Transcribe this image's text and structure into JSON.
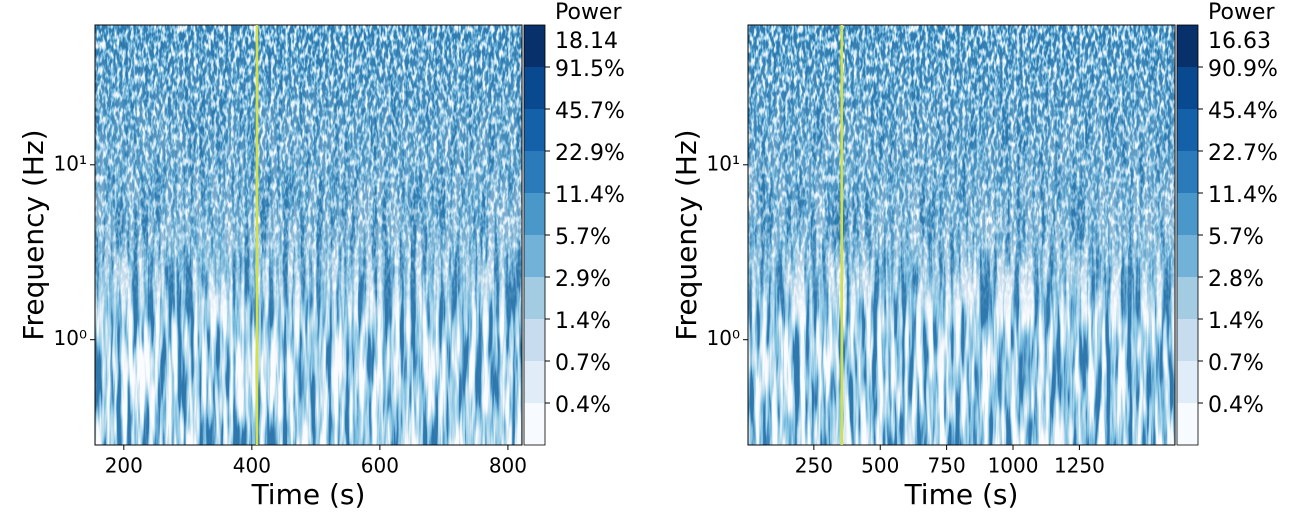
{
  "chart_data": [
    {
      "type": "spectrogram",
      "xlabel": "Time (s)",
      "ylabel": "Frequency (Hz)",
      "xlim": [
        155,
        822
      ],
      "xticks": [
        200,
        400,
        600,
        800
      ],
      "ylim": [
        0.25,
        63
      ],
      "log_y": true,
      "yticks": [
        {
          "value": 1,
          "label": "10⁰"
        },
        {
          "value": 10,
          "label": "10¹"
        }
      ],
      "vline": {
        "x": 408,
        "color": "#d4e044"
      },
      "colorbar": {
        "title": "Power",
        "max": 18.14,
        "ticks": [
          {
            "value": 0.4,
            "label": "0.4%"
          },
          {
            "value": 0.7,
            "label": "0.7%"
          },
          {
            "value": 1.4,
            "label": "1.4%"
          },
          {
            "value": 2.9,
            "label": "2.9%"
          },
          {
            "value": 5.7,
            "label": "5.7%"
          },
          {
            "value": 11.4,
            "label": "11.4%"
          },
          {
            "value": 22.9,
            "label": "22.9%"
          },
          {
            "value": 45.7,
            "label": "45.7%"
          },
          {
            "value": 91.5,
            "label": "91.5%"
          }
        ],
        "colors": [
          "#f7fbff",
          "#e0ecf8",
          "#c8dcf0",
          "#a3cce3",
          "#73b2d8",
          "#4a98c9",
          "#2b7bba",
          "#1561a9",
          "#084990",
          "#08306b"
        ]
      }
    },
    {
      "type": "spectrogram",
      "xlabel": "Time (s)",
      "ylabel": "Frequency (Hz)",
      "xlim": [
        2,
        1610
      ],
      "xticks": [
        250,
        500,
        750,
        1000,
        1250
      ],
      "ylim": [
        0.25,
        63
      ],
      "log_y": true,
      "yticks": [
        {
          "value": 1,
          "label": "10⁰"
        },
        {
          "value": 10,
          "label": "10¹"
        }
      ],
      "vline": {
        "x": 355,
        "color": "#d4e044"
      },
      "colorbar": {
        "title": "Power",
        "max": 16.63,
        "ticks": [
          {
            "value": 0.4,
            "label": "0.4%"
          },
          {
            "value": 0.7,
            "label": "0.7%"
          },
          {
            "value": 1.4,
            "label": "1.4%"
          },
          {
            "value": 2.8,
            "label": "2.8%"
          },
          {
            "value": 5.7,
            "label": "5.7%"
          },
          {
            "value": 11.4,
            "label": "11.4%"
          },
          {
            "value": 22.7,
            "label": "22.7%"
          },
          {
            "value": 45.4,
            "label": "45.4%"
          },
          {
            "value": 90.9,
            "label": "90.9%"
          }
        ],
        "colors": [
          "#f7fbff",
          "#e0ecf8",
          "#c8dcf0",
          "#a3cce3",
          "#73b2d8",
          "#4a98c9",
          "#2b7bba",
          "#1561a9",
          "#084990",
          "#08306b"
        ]
      }
    }
  ]
}
